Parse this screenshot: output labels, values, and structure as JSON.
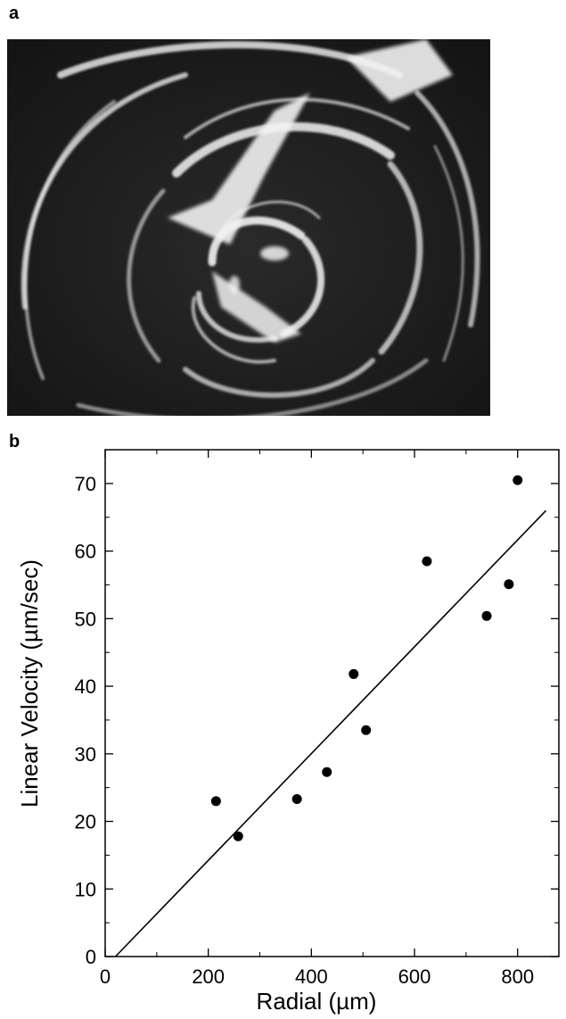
{
  "panels": {
    "a_label": "a",
    "b_label": "b"
  },
  "photo": {
    "description_icon": "spiral-swirl-micrograph"
  },
  "chart_data": {
    "type": "scatter",
    "title": "",
    "xlabel": "Radial (µm)",
    "ylabel": "Linear Velocity (µm/sec)",
    "xlim": [
      0,
      880
    ],
    "ylim": [
      0,
      75
    ],
    "xticks": [
      0,
      200,
      400,
      600,
      800
    ],
    "xtick_labels": [
      "0",
      "200",
      "400",
      "600",
      "800"
    ],
    "yticks": [
      0,
      10,
      20,
      30,
      40,
      50,
      60,
      70
    ],
    "ytick_labels": [
      "0",
      "10",
      "20",
      "30",
      "40",
      "50",
      "60",
      "70"
    ],
    "grid": false,
    "series": [
      {
        "points": [
          {
            "x": 215,
            "y": 23.0
          },
          {
            "x": 258,
            "y": 17.8
          },
          {
            "x": 372,
            "y": 23.3
          },
          {
            "x": 430,
            "y": 27.3
          },
          {
            "x": 482,
            "y": 41.8
          },
          {
            "x": 506,
            "y": 33.5
          },
          {
            "x": 624,
            "y": 58.5
          },
          {
            "x": 740,
            "y": 50.4
          },
          {
            "x": 783,
            "y": 55.1
          },
          {
            "x": 800,
            "y": 70.5
          }
        ]
      }
    ],
    "fit_line": {
      "x": [
        20,
        855
      ],
      "y": [
        0,
        66
      ]
    },
    "colors": {
      "marker": "#000000",
      "line": "#000000"
    }
  }
}
